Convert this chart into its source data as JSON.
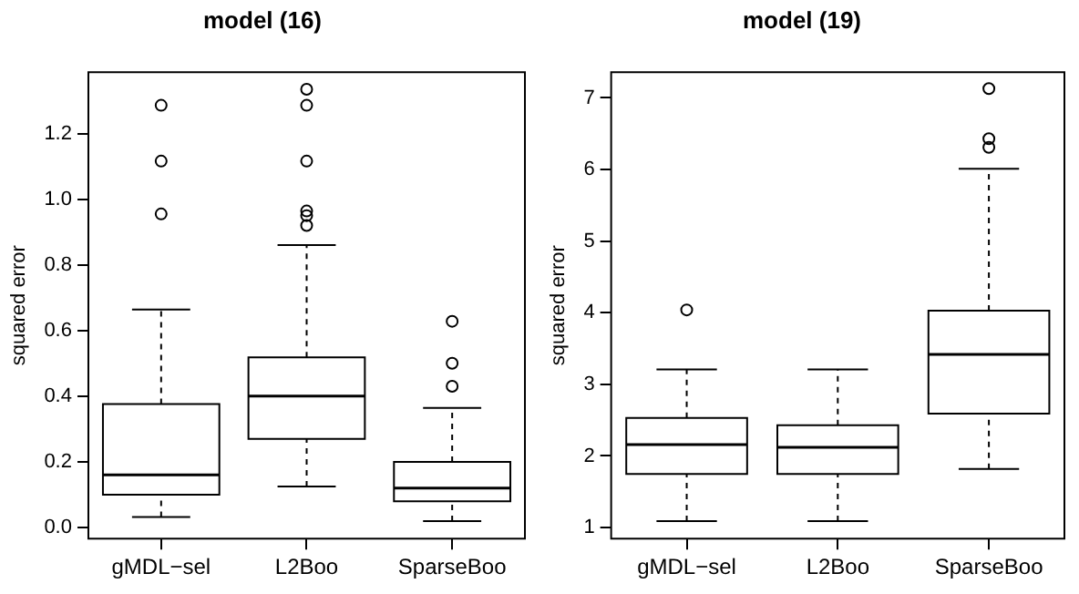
{
  "chart_data": [
    {
      "type": "box",
      "title": "model (16)",
      "ylabel": "squared error",
      "categories": [
        "gMDL−sel",
        "L2Boo",
        "SparseBoo"
      ],
      "boxes": [
        {
          "low": 0.032,
          "q1": 0.1,
          "median": 0.16,
          "q3": 0.376,
          "high": 0.664,
          "outliers": [
            1.286,
            1.116,
            0.955
          ]
        },
        {
          "low": 0.125,
          "q1": 0.27,
          "median": 0.4,
          "q3": 0.518,
          "high": 0.86,
          "outliers": [
            1.335,
            1.286,
            1.116,
            0.964,
            0.95,
            0.92
          ]
        },
        {
          "low": 0.019,
          "q1": 0.08,
          "median": 0.12,
          "q3": 0.2,
          "high": 0.364,
          "outliers": [
            0.628,
            0.5,
            0.43
          ]
        }
      ],
      "ylim": [
        -0.034,
        1.387
      ],
      "yticks": [
        {
          "value": 0,
          "label": "0.0"
        },
        0.2,
        0.4,
        0.6,
        0.8,
        {
          "value": 1,
          "label": "1.0"
        },
        1.2
      ]
    },
    {
      "type": "box",
      "title": "model (19)",
      "ylabel": "squared error",
      "categories": [
        "gMDL−sel",
        "L2Boo",
        "SparseBoo"
      ],
      "boxes": [
        {
          "low": 1.09,
          "q1": 1.75,
          "median": 2.16,
          "q3": 2.53,
          "high": 3.21,
          "outliers": [
            4.04
          ]
        },
        {
          "low": 1.09,
          "q1": 1.75,
          "median": 2.12,
          "q3": 2.43,
          "high": 3.21
        },
        {
          "low": 1.82,
          "q1": 2.59,
          "median": 3.42,
          "q3": 4.03,
          "high": 6.01,
          "outliers": [
            7.13,
            6.43,
            6.31
          ]
        }
      ],
      "ylim": [
        0.846,
        7.36
      ],
      "yticks": [
        1,
        2,
        3,
        4,
        5,
        6,
        7
      ]
    }
  ]
}
